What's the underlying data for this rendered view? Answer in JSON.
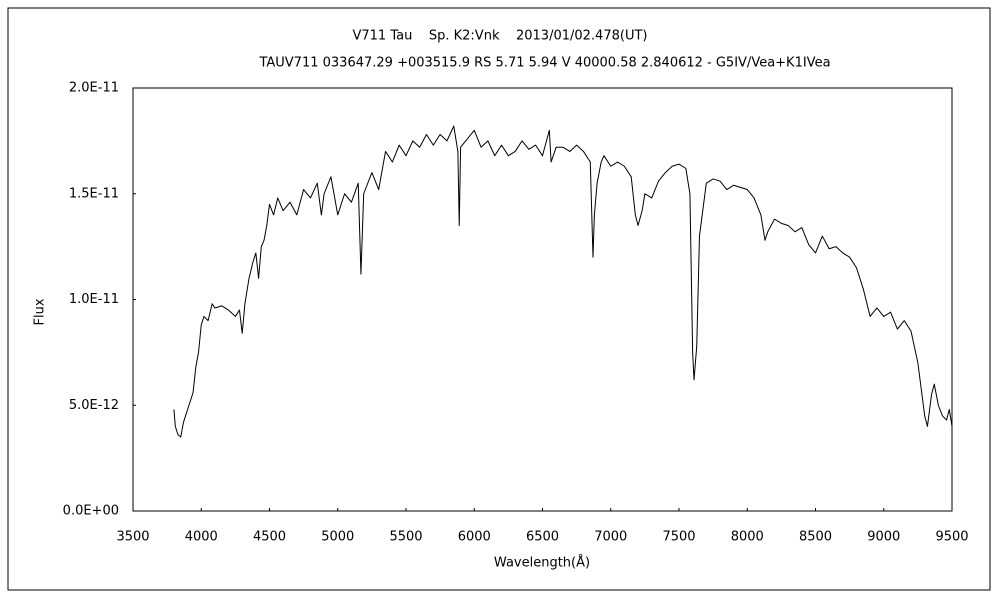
{
  "chart_data": {
    "type": "line",
    "title": "V711 Tau    Sp. K2:Vnk    2013/01/02.478(UT)",
    "subtitle": "TAUV711 033647.29 +003515.9 RS 5.71 5.94 V 40000.58 2.840612 - G5IV/Vea+K1IVea",
    "x_label": "Wavelength(Å)",
    "y_label": "Flux",
    "color": "#000000",
    "xlim": [
      3500,
      9500
    ],
    "xticks": [
      3500,
      4000,
      4500,
      5000,
      5500,
      6000,
      6500,
      7000,
      7500,
      8000,
      8500,
      9000,
      9500
    ],
    "ylim": [
      0,
      2e-11
    ],
    "yticks": [
      {
        "value": 0,
        "label": "0.0E+00"
      },
      {
        "value": 5e-12,
        "label": "5.0E-12"
      },
      {
        "value": 1e-11,
        "label": "1.0E-11"
      },
      {
        "value": 1.5e-11,
        "label": "1.5E-11"
      },
      {
        "value": 2e-11,
        "label": "2.0E-11"
      }
    ],
    "grid": false,
    "x": [
      3800,
      3810,
      3830,
      3850,
      3870,
      3900,
      3920,
      3940,
      3960,
      3980,
      4000,
      4020,
      4050,
      4080,
      4100,
      4150,
      4200,
      4250,
      4280,
      4300,
      4320,
      4350,
      4380,
      4400,
      4420,
      4440,
      4460,
      4480,
      4500,
      4530,
      4560,
      4600,
      4650,
      4700,
      4750,
      4800,
      4850,
      4880,
      4900,
      4950,
      5000,
      5050,
      5100,
      5150,
      5170,
      5190,
      5250,
      5300,
      5350,
      5400,
      5450,
      5500,
      5550,
      5600,
      5650,
      5700,
      5750,
      5800,
      5850,
      5880,
      5890,
      5900,
      5950,
      6000,
      6050,
      6100,
      6150,
      6200,
      6250,
      6300,
      6350,
      6400,
      6450,
      6500,
      6550,
      6563,
      6600,
      6650,
      6700,
      6750,
      6800,
      6850,
      6870,
      6880,
      6900,
      6930,
      6950,
      7000,
      7050,
      7100,
      7150,
      7180,
      7200,
      7230,
      7250,
      7300,
      7350,
      7400,
      7450,
      7500,
      7550,
      7580,
      7600,
      7610,
      7630,
      7650,
      7700,
      7750,
      7800,
      7850,
      7900,
      7950,
      8000,
      8050,
      8100,
      8130,
      8150,
      8200,
      8250,
      8300,
      8350,
      8400,
      8450,
      8500,
      8550,
      8600,
      8650,
      8700,
      8750,
      8800,
      8850,
      8900,
      8950,
      9000,
      9050,
      9100,
      9150,
      9200,
      9250,
      9280,
      9300,
      9320,
      9350,
      9370,
      9400,
      9430,
      9460,
      9480,
      9500
    ],
    "values": [
      4.8e-12,
      4e-12,
      3.6e-12,
      3.5e-12,
      4.2e-12,
      4.8e-12,
      5.2e-12,
      5.6e-12,
      6.8e-12,
      7.5e-12,
      8.8e-12,
      9.2e-12,
      9e-12,
      9.8e-12,
      9.6e-12,
      9.7e-12,
      9.5e-12,
      9.2e-12,
      9.5e-12,
      8.4e-12,
      9.8e-12,
      1.1e-11,
      1.18e-11,
      1.22e-11,
      1.1e-11,
      1.25e-11,
      1.28e-11,
      1.35e-11,
      1.45e-11,
      1.4e-11,
      1.48e-11,
      1.42e-11,
      1.46e-11,
      1.4e-11,
      1.52e-11,
      1.48e-11,
      1.55e-11,
      1.4e-11,
      1.5e-11,
      1.58e-11,
      1.4e-11,
      1.5e-11,
      1.46e-11,
      1.55e-11,
      1.12e-11,
      1.5e-11,
      1.6e-11,
      1.52e-11,
      1.7e-11,
      1.65e-11,
      1.73e-11,
      1.68e-11,
      1.75e-11,
      1.72e-11,
      1.78e-11,
      1.73e-11,
      1.78e-11,
      1.75e-11,
      1.82e-11,
      1.7e-11,
      1.35e-11,
      1.72e-11,
      1.76e-11,
      1.8e-11,
      1.72e-11,
      1.75e-11,
      1.68e-11,
      1.73e-11,
      1.68e-11,
      1.7e-11,
      1.75e-11,
      1.71e-11,
      1.73e-11,
      1.68e-11,
      1.8e-11,
      1.65e-11,
      1.72e-11,
      1.72e-11,
      1.7e-11,
      1.73e-11,
      1.7e-11,
      1.65e-11,
      1.2e-11,
      1.4e-11,
      1.55e-11,
      1.65e-11,
      1.68e-11,
      1.63e-11,
      1.65e-11,
      1.63e-11,
      1.58e-11,
      1.4e-11,
      1.35e-11,
      1.42e-11,
      1.5e-11,
      1.48e-11,
      1.56e-11,
      1.6e-11,
      1.63e-11,
      1.64e-11,
      1.62e-11,
      1.5e-11,
      7.5e-12,
      6.2e-12,
      7.8e-12,
      1.3e-11,
      1.55e-11,
      1.57e-11,
      1.56e-11,
      1.52e-11,
      1.54e-11,
      1.53e-11,
      1.52e-11,
      1.48e-11,
      1.4e-11,
      1.28e-11,
      1.32e-11,
      1.38e-11,
      1.36e-11,
      1.35e-11,
      1.32e-11,
      1.34e-11,
      1.26e-11,
      1.22e-11,
      1.3e-11,
      1.24e-11,
      1.25e-11,
      1.22e-11,
      1.2e-11,
      1.15e-11,
      1.05e-11,
      9.2e-12,
      9.6e-12,
      9.2e-12,
      9.4e-12,
      8.6e-12,
      9e-12,
      8.5e-12,
      7e-12,
      5.5e-12,
      4.5e-12,
      4e-12,
      5.5e-12,
      6e-12,
      5e-12,
      4.5e-12,
      4.3e-12,
      4.8e-12,
      4e-12
    ]
  }
}
